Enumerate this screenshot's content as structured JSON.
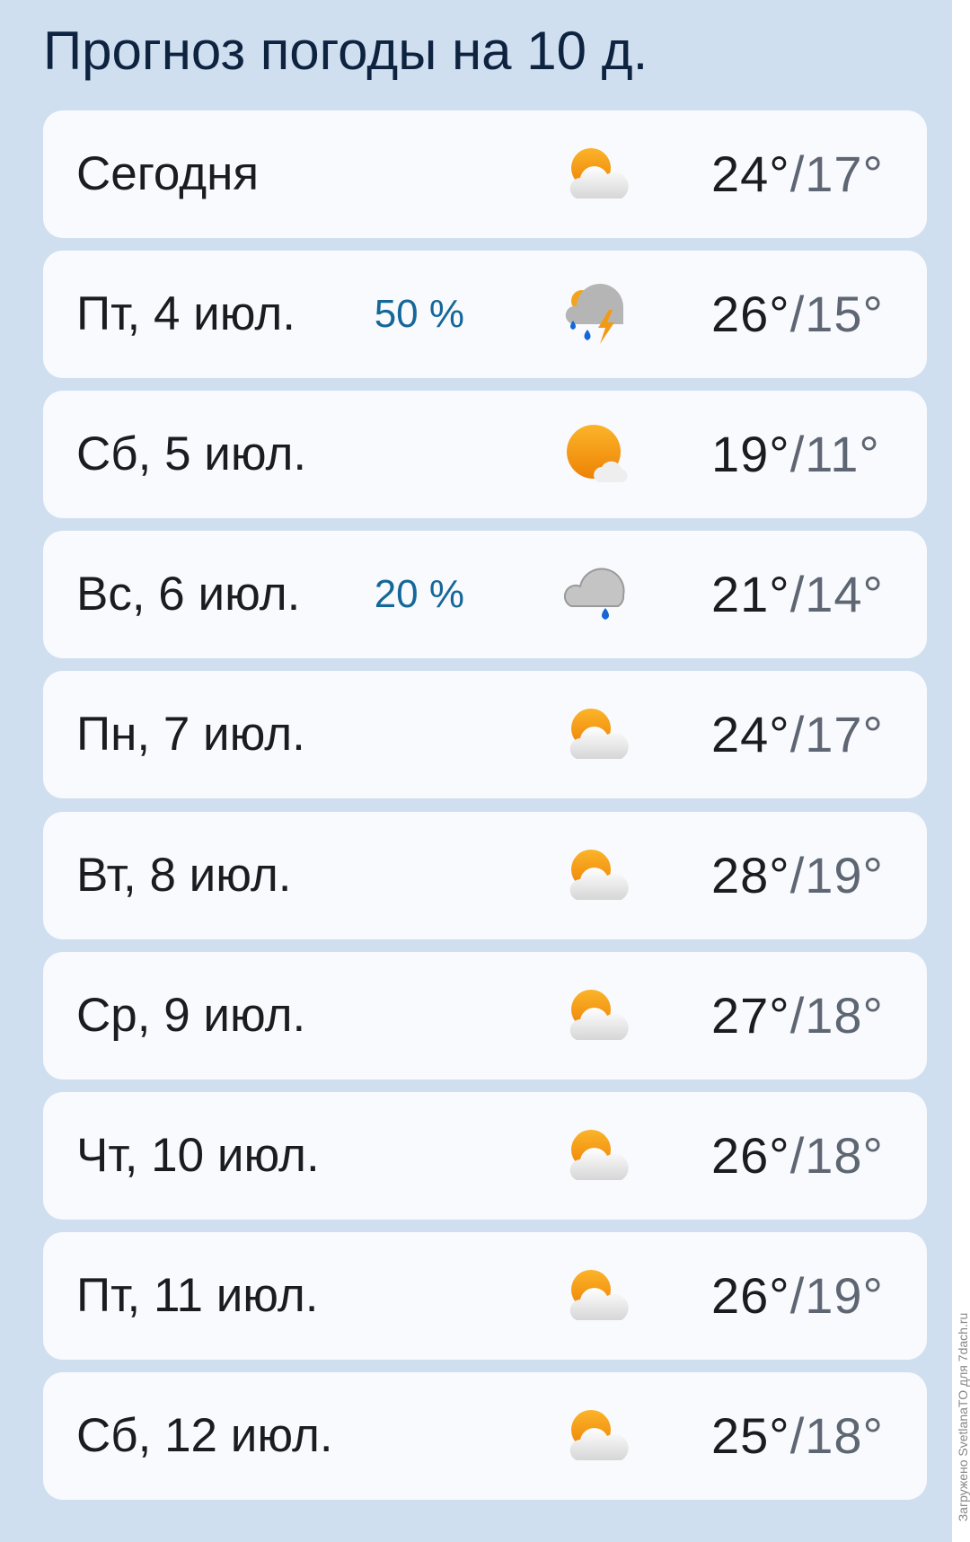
{
  "title": "Прогноз погоды на 10 д.",
  "watermark": "Загружено SvetlanaTO для 7dach.ru",
  "days": [
    {
      "day": "Сегодня",
      "precip": "",
      "icon": "partly-cloudy-icon",
      "high": "24°",
      "low": "/17°"
    },
    {
      "day": "Пт, 4 июл.",
      "precip": "50 %",
      "icon": "thunderstorm-rain-icon",
      "high": "26°",
      "low": "/15°"
    },
    {
      "day": "Сб, 5 июл.",
      "precip": "",
      "icon": "mostly-sunny-icon",
      "high": "19°",
      "low": "/11°"
    },
    {
      "day": "Вс, 6 июл.",
      "precip": "20 %",
      "icon": "cloud-rain-icon",
      "high": "21°",
      "low": "/14°"
    },
    {
      "day": "Пн, 7 июл.",
      "precip": "",
      "icon": "partly-cloudy-icon",
      "high": "24°",
      "low": "/17°"
    },
    {
      "day": "Вт, 8 июл.",
      "precip": "",
      "icon": "partly-cloudy-icon",
      "high": "28°",
      "low": "/19°"
    },
    {
      "day": "Ср, 9 июл.",
      "precip": "",
      "icon": "partly-cloudy-icon",
      "high": "27°",
      "low": "/18°"
    },
    {
      "day": "Чт, 10 июл.",
      "precip": "",
      "icon": "partly-cloudy-icon",
      "high": "26°",
      "low": "/18°"
    },
    {
      "day": "Пт, 11 июл.",
      "precip": "",
      "icon": "partly-cloudy-icon",
      "high": "26°",
      "low": "/19°"
    },
    {
      "day": "Сб, 12 июл.",
      "precip": "",
      "icon": "partly-cloudy-icon",
      "high": "25°",
      "low": "/18°"
    }
  ],
  "colors": {
    "background": "#cfdfef",
    "card": "#f9fafd",
    "precip": "#15679a",
    "sun": "#f39a14"
  }
}
